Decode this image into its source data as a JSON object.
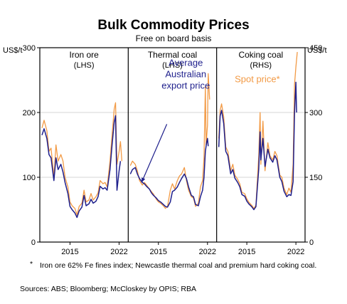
{
  "chart_data": {
    "type": "line",
    "title": "Bulk Commodity Prices",
    "subtitle": "Free on board basis",
    "left_unit": "US$/t",
    "right_unit": "US$/t",
    "left_axis": {
      "ticks": [
        0,
        100,
        200,
        300
      ],
      "ylim": [
        0,
        300
      ]
    },
    "right_axis": {
      "ticks": [
        0,
        150,
        300,
        450
      ],
      "ylim": [
        0,
        450
      ]
    },
    "x_ticks": [
      "2015",
      "2022"
    ],
    "grid": true,
    "colors": {
      "spot": "#f29a45",
      "export": "#1e1f8c"
    },
    "panels": [
      {
        "title": "Iron ore",
        "axis_note": "(LHS)",
        "axis": "left",
        "xlim": [
          2011,
          2023
        ],
        "series": [
          {
            "key": "spot",
            "values": [
              [
                2011,
                176
              ],
              [
                2011.3,
                188
              ],
              [
                2011.7,
                172
              ],
              [
                2012,
                140
              ],
              [
                2012.3,
                145
              ],
              [
                2012.7,
                100
              ],
              [
                2013,
                150
              ],
              [
                2013.3,
                125
              ],
              [
                2013.7,
                135
              ],
              [
                2014,
                125
              ],
              [
                2014.3,
                100
              ],
              [
                2014.7,
                85
              ],
              [
                2015,
                62
              ],
              [
                2015.3,
                56
              ],
              [
                2015.7,
                52
              ],
              [
                2016,
                42
              ],
              [
                2016.3,
                55
              ],
              [
                2016.7,
                60
              ],
              [
                2017,
                80
              ],
              [
                2017.3,
                62
              ],
              [
                2017.7,
                65
              ],
              [
                2018,
                75
              ],
              [
                2018.3,
                65
              ],
              [
                2018.7,
                70
              ],
              [
                2019,
                76
              ],
              [
                2019.3,
                95
              ],
              [
                2019.7,
                90
              ],
              [
                2020,
                92
              ],
              [
                2020.3,
                85
              ],
              [
                2020.7,
                125
              ],
              [
                2021,
                165
              ],
              [
                2021.3,
                205
              ],
              [
                2021.5,
                215
              ],
              [
                2021.7,
                120
              ],
              [
                2022,
                140
              ],
              [
                2022.2,
                155
              ],
              [
                2022.4,
                125
              ]
            ]
          },
          {
            "key": "export",
            "values": [
              [
                2011,
                165
              ],
              [
                2011.3,
                175
              ],
              [
                2011.7,
                160
              ],
              [
                2012,
                135
              ],
              [
                2012.3,
                130
              ],
              [
                2012.7,
                95
              ],
              [
                2013,
                130
              ],
              [
                2013.3,
                112
              ],
              [
                2013.7,
                120
              ],
              [
                2014,
                108
              ],
              [
                2014.3,
                92
              ],
              [
                2014.7,
                75
              ],
              [
                2015,
                55
              ],
              [
                2015.3,
                50
              ],
              [
                2015.7,
                45
              ],
              [
                2016,
                38
              ],
              [
                2016.3,
                48
              ],
              [
                2016.7,
                54
              ],
              [
                2017,
                72
              ],
              [
                2017.3,
                56
              ],
              [
                2017.7,
                59
              ],
              [
                2018,
                66
              ],
              [
                2018.3,
                60
              ],
              [
                2018.7,
                63
              ],
              [
                2019,
                70
              ],
              [
                2019.3,
                86
              ],
              [
                2019.7,
                82
              ],
              [
                2020,
                84
              ],
              [
                2020.3,
                80
              ],
              [
                2020.7,
                112
              ],
              [
                2021,
                150
              ],
              [
                2021.3,
                185
              ],
              [
                2021.5,
                195
              ],
              [
                2021.7,
                80
              ],
              [
                2022,
                110
              ],
              [
                2022.2,
                125
              ]
            ]
          }
        ],
        "labels": []
      },
      {
        "title": "Thermal coal",
        "axis_note": "(LHS)",
        "axis": "left",
        "xlim": [
          2011,
          2023
        ],
        "series": [
          {
            "key": "spot",
            "values": [
              [
                2011,
                118
              ],
              [
                2011.3,
                125
              ],
              [
                2011.7,
                120
              ],
              [
                2012,
                110
              ],
              [
                2012.3,
                95
              ],
              [
                2012.7,
                88
              ],
              [
                2013,
                92
              ],
              [
                2013.3,
                88
              ],
              [
                2013.7,
                82
              ],
              [
                2014,
                78
              ],
              [
                2014.3,
                74
              ],
              [
                2014.7,
                66
              ],
              [
                2015,
                62
              ],
              [
                2015.3,
                60
              ],
              [
                2015.7,
                56
              ],
              [
                2016,
                52
              ],
              [
                2016.3,
                55
              ],
              [
                2016.7,
                80
              ],
              [
                2017,
                90
              ],
              [
                2017.3,
                82
              ],
              [
                2017.7,
                95
              ],
              [
                2018,
                102
              ],
              [
                2018.3,
                105
              ],
              [
                2018.7,
                115
              ],
              [
                2019,
                95
              ],
              [
                2019.3,
                80
              ],
              [
                2019.7,
                70
              ],
              [
                2020,
                68
              ],
              [
                2020.3,
                55
              ],
              [
                2020.7,
                60
              ],
              [
                2021,
                85
              ],
              [
                2021.3,
                95
              ],
              [
                2021.5,
                130
              ],
              [
                2021.7,
                240
              ],
              [
                2021.8,
                150
              ],
              [
                2022,
                180
              ],
              [
                2022.1,
                260
              ],
              [
                2022.3,
                220
              ]
            ]
          },
          {
            "key": "export",
            "values": [
              [
                2011,
                105
              ],
              [
                2011.3,
                112
              ],
              [
                2011.7,
                115
              ],
              [
                2012,
                105
              ],
              [
                2012.3,
                98
              ],
              [
                2012.7,
                92
              ],
              [
                2013,
                90
              ],
              [
                2013.3,
                86
              ],
              [
                2013.7,
                82
              ],
              [
                2014,
                76
              ],
              [
                2014.3,
                72
              ],
              [
                2014.7,
                68
              ],
              [
                2015,
                64
              ],
              [
                2015.3,
                62
              ],
              [
                2015.7,
                58
              ],
              [
                2016,
                55
              ],
              [
                2016.3,
                54
              ],
              [
                2016.7,
                62
              ],
              [
                2017,
                78
              ],
              [
                2017.3,
                80
              ],
              [
                2017.7,
                85
              ],
              [
                2018,
                92
              ],
              [
                2018.3,
                98
              ],
              [
                2018.7,
                105
              ],
              [
                2019,
                98
              ],
              [
                2019.3,
                85
              ],
              [
                2019.7,
                72
              ],
              [
                2020,
                70
              ],
              [
                2020.3,
                58
              ],
              [
                2020.7,
                56
              ],
              [
                2021,
                70
              ],
              [
                2021.3,
                80
              ],
              [
                2021.5,
                100
              ],
              [
                2021.7,
                140
              ],
              [
                2021.9,
                155
              ],
              [
                2022,
                160
              ],
              [
                2022.1,
                148
              ]
            ]
          }
        ],
        "labels": [
          {
            "lines": [
              "Average",
              "Australian",
              "export price"
            ],
            "color": "export",
            "x": 2018.9,
            "y": 272
          }
        ]
      },
      {
        "title": "Coking coal",
        "axis_note": "(RHS)",
        "axis": "right",
        "xlim": [
          2011,
          2023
        ],
        "series": [
          {
            "key": "spot",
            "values": [
              [
                2011,
                240
              ],
              [
                2011.2,
                305
              ],
              [
                2011.4,
                320
              ],
              [
                2011.7,
                290
              ],
              [
                2012,
                220
              ],
              [
                2012.3,
                210
              ],
              [
                2012.7,
                165
              ],
              [
                2013,
                180
              ],
              [
                2013.3,
                155
              ],
              [
                2013.7,
                145
              ],
              [
                2014,
                135
              ],
              [
                2014.3,
                115
              ],
              [
                2014.7,
                112
              ],
              [
                2015,
                100
              ],
              [
                2015.3,
                92
              ],
              [
                2015.7,
                85
              ],
              [
                2016,
                78
              ],
              [
                2016.3,
                85
              ],
              [
                2016.7,
                200
              ],
              [
                2016.9,
                300
              ],
              [
                2017,
                180
              ],
              [
                2017.3,
                280
              ],
              [
                2017.6,
                165
              ],
              [
                2018,
                230
              ],
              [
                2018.3,
                200
              ],
              [
                2018.7,
                190
              ],
              [
                2019,
                210
              ],
              [
                2019.3,
                200
              ],
              [
                2019.7,
                155
              ],
              [
                2020,
                150
              ],
              [
                2020.3,
                125
              ],
              [
                2020.7,
                110
              ],
              [
                2021,
                125
              ],
              [
                2021.3,
                115
              ],
              [
                2021.6,
                180
              ],
              [
                2021.8,
                365
              ],
              [
                2022,
                405
              ],
              [
                2022.2,
                440
              ]
            ]
          },
          {
            "key": "export",
            "values": [
              [
                2011,
                220
              ],
              [
                2011.2,
                292
              ],
              [
                2011.4,
                305
              ],
              [
                2011.7,
                275
              ],
              [
                2012,
                210
              ],
              [
                2012.3,
                200
              ],
              [
                2012.7,
                158
              ],
              [
                2013,
                168
              ],
              [
                2013.3,
                148
              ],
              [
                2013.7,
                138
              ],
              [
                2014,
                128
              ],
              [
                2014.3,
                110
              ],
              [
                2014.7,
                106
              ],
              [
                2015,
                95
              ],
              [
                2015.3,
                88
              ],
              [
                2015.7,
                82
              ],
              [
                2016,
                75
              ],
              [
                2016.3,
                82
              ],
              [
                2016.7,
                170
              ],
              [
                2016.9,
                255
              ],
              [
                2017,
                190
              ],
              [
                2017.3,
                240
              ],
              [
                2017.6,
                175
              ],
              [
                2018,
                215
              ],
              [
                2018.3,
                195
              ],
              [
                2018.7,
                185
              ],
              [
                2019,
                200
              ],
              [
                2019.3,
                190
              ],
              [
                2019.7,
                150
              ],
              [
                2020,
                140
              ],
              [
                2020.3,
                118
              ],
              [
                2020.7,
                105
              ],
              [
                2021,
                110
              ],
              [
                2021.3,
                108
              ],
              [
                2021.6,
                140
              ],
              [
                2021.8,
                300
              ],
              [
                2022,
                370
              ],
              [
                2022.1,
                300
              ]
            ]
          }
        ],
        "labels": [
          {
            "lines": [
              "Spot price*"
            ],
            "color": "spot",
            "x": 2016.5,
            "y": 370
          }
        ]
      }
    ]
  },
  "footnote_mark": "*",
  "footnote": "Iron ore 62% Fe fines index; Newcastle thermal coal and premium hard coking coal.",
  "sources": "Sources: ABS; Bloomberg; McCloskey by OPIS; RBA"
}
